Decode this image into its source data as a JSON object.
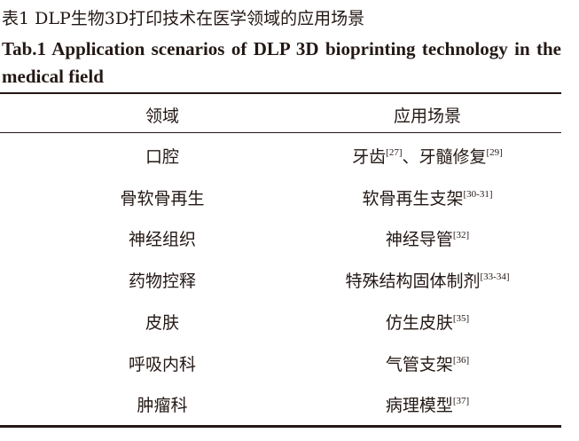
{
  "caption": {
    "cn": "表1 DLP生物3D打印技术在医学领域的应用场景",
    "en": "Tab.1 Application scenarios of DLP 3D bioprinting technology in the medical field"
  },
  "table": {
    "headers": [
      "领域",
      "应用场景"
    ],
    "rows": [
      {
        "field": "口腔",
        "app": [
          {
            "t": "牙齿",
            "ref": "[27]"
          },
          {
            "t": "、牙髓修复",
            "ref": "[29]"
          }
        ]
      },
      {
        "field": "骨软骨再生",
        "app": [
          {
            "t": "软骨再生支架",
            "ref": "[30-31]"
          }
        ]
      },
      {
        "field": "神经组织",
        "app": [
          {
            "t": "神经导管",
            "ref": "[32]"
          }
        ]
      },
      {
        "field": "药物控释",
        "app": [
          {
            "t": "特殊结构固体制剂",
            "ref": "[33-34]"
          }
        ]
      },
      {
        "field": "皮肤",
        "app": [
          {
            "t": "仿生皮肤",
            "ref": "[35]"
          }
        ]
      },
      {
        "field": "呼吸内科",
        "app": [
          {
            "t": "气管支架",
            "ref": "[36]"
          }
        ]
      },
      {
        "field": "肿瘤科",
        "app": [
          {
            "t": "病理模型",
            "ref": "[37]"
          }
        ]
      }
    ]
  }
}
